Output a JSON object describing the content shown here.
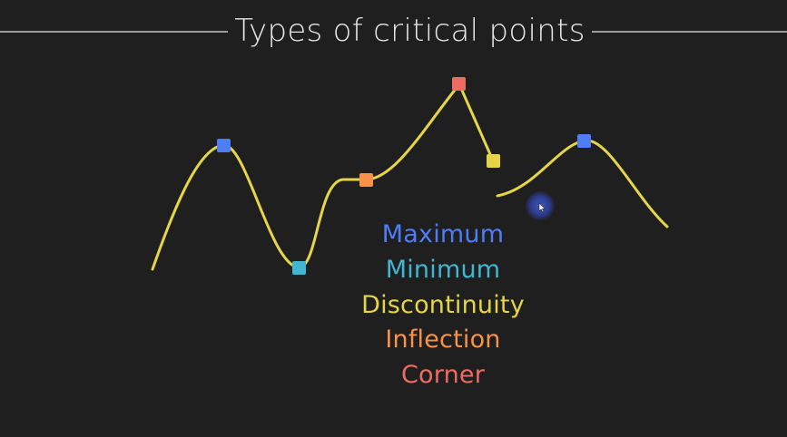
{
  "title": "Types of critical points",
  "colors": {
    "background": "#1f1f20",
    "curve": "#e5d547",
    "maximum": "#4f7df6",
    "minimum": "#41b6d0",
    "discontinuity": "#e5d547",
    "inflection": "#f79248",
    "corner": "#ec6b63"
  },
  "legend": [
    {
      "key": "maximum",
      "label": "Maximum",
      "color": "#4f7df6"
    },
    {
      "key": "minimum",
      "label": "Minimum",
      "color": "#41b6d0"
    },
    {
      "key": "discontinuity",
      "label": "Discontinuity",
      "color": "#e5d547"
    },
    {
      "key": "inflection",
      "label": "Inflection",
      "color": "#f79248"
    },
    {
      "key": "corner",
      "label": "Corner",
      "color": "#ec6b63"
    }
  ],
  "markers": [
    {
      "type": "maximum"
    },
    {
      "type": "minimum"
    },
    {
      "type": "inflection"
    },
    {
      "type": "corner"
    },
    {
      "type": "discontinuity"
    },
    {
      "type": "maximum"
    }
  ]
}
